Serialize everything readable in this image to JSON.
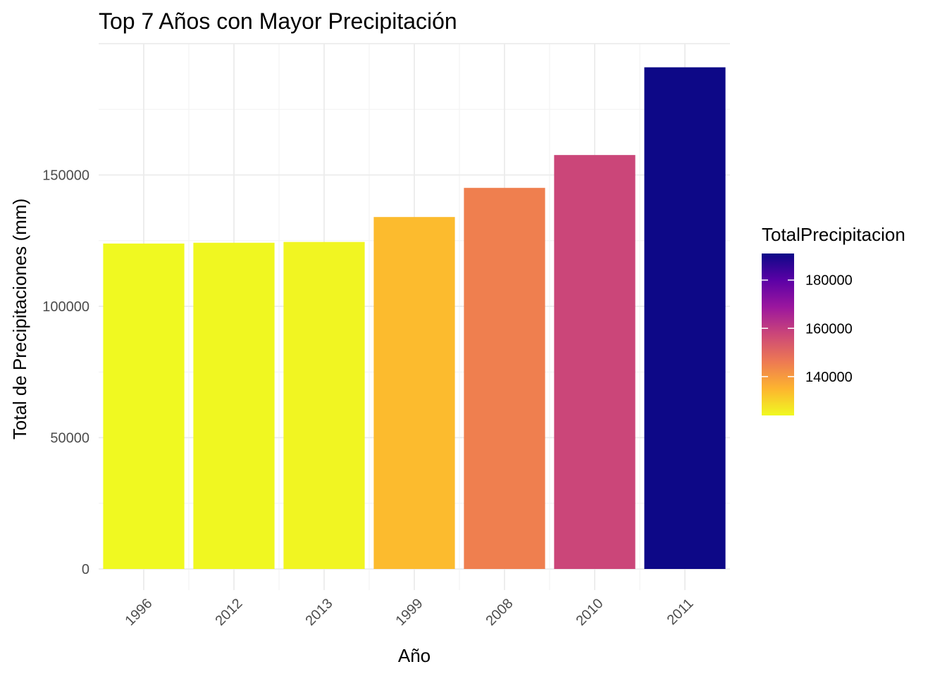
{
  "chart_data": {
    "type": "bar",
    "title": "Top 7 Años con Mayor Precipitación",
    "xlabel": "Año",
    "ylabel": "Total de Precipitaciones (mm)",
    "categories": [
      "1996",
      "2012",
      "2013",
      "1999",
      "2008",
      "2010",
      "2011"
    ],
    "values": [
      123900,
      124200,
      124500,
      134000,
      145100,
      157600,
      191000
    ],
    "ylim": [
      0,
      200000
    ],
    "yticks": [
      0,
      50000,
      100000,
      150000
    ],
    "ytick_labels": [
      "0",
      "50000",
      "100000",
      "150000"
    ],
    "grid": true,
    "legend": {
      "title": "TotalPrecipitacion",
      "placement": "right",
      "type": "colorbar",
      "range": [
        123900,
        191000
      ],
      "ticks": [
        140000,
        160000,
        180000
      ],
      "tick_labels": [
        "140000",
        "160000",
        "180000"
      ],
      "gradient_colors": [
        "#f0f921",
        "#fdb42f",
        "#ed7953",
        "#cc4778",
        "#9c179e",
        "#5c01a6",
        "#0d0887"
      ]
    }
  }
}
